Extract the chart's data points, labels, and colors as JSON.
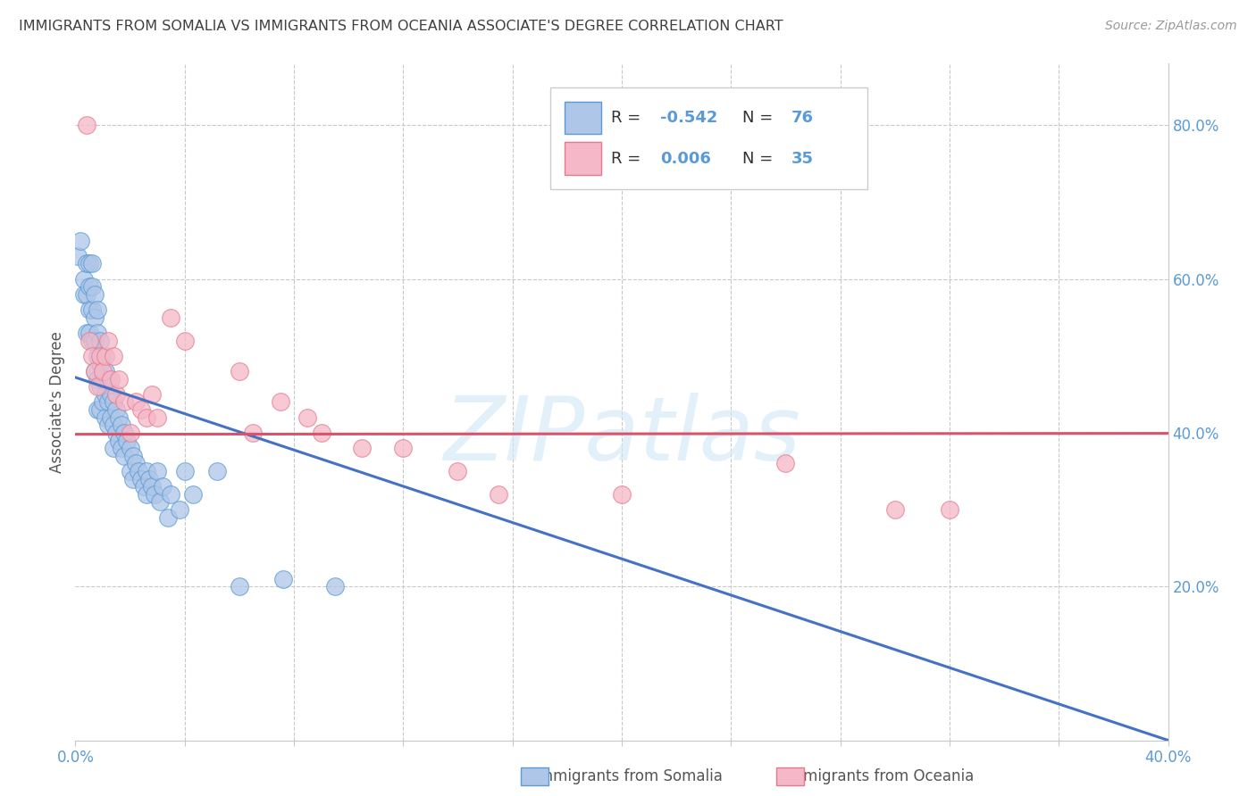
{
  "title": "IMMIGRANTS FROM SOMALIA VS IMMIGRANTS FROM OCEANIA ASSOCIATE'S DEGREE CORRELATION CHART",
  "source": "Source: ZipAtlas.com",
  "xlabel_somalia": "Immigrants from Somalia",
  "xlabel_oceania": "Immigrants from Oceania",
  "ylabel": "Associate's Degree",
  "watermark": "ZIPatlas",
  "xlim": [
    0.0,
    0.4
  ],
  "ylim": [
    0.0,
    0.88
  ],
  "xtick_positions": [
    0.0,
    0.04,
    0.08,
    0.12,
    0.16,
    0.2,
    0.24,
    0.28,
    0.32,
    0.36,
    0.4
  ],
  "xtick_labels_show": {
    "0.0": "0.0%",
    "0.40": "40.0%"
  },
  "yticks_right": [
    0.2,
    0.4,
    0.6,
    0.8
  ],
  "somalia_R": -0.542,
  "somalia_N": 76,
  "oceania_R": 0.006,
  "oceania_N": 35,
  "somalia_color": "#aec6e8",
  "oceania_color": "#f4b8c8",
  "somalia_edge_color": "#5b9bd5",
  "oceania_edge_color": "#e8788a",
  "somalia_line_color": "#4472c4",
  "oceania_line_color": "#d9536a",
  "title_color": "#404040",
  "axis_label_color": "#555555",
  "right_tick_color": "#5b9bd5",
  "legend_R_color": "#5b9bd5",
  "legend_N_color": "#5b9bd5",
  "background_color": "#ffffff",
  "grid_color": "#c8c8c8",
  "somalia_trend_intercept": 0.472,
  "somalia_trend_slope": -1.18,
  "oceania_trend_intercept": 0.398,
  "oceania_trend_slope": 0.003,
  "somalia_x": [
    0.001,
    0.002,
    0.003,
    0.003,
    0.004,
    0.004,
    0.004,
    0.005,
    0.005,
    0.005,
    0.005,
    0.006,
    0.006,
    0.006,
    0.006,
    0.007,
    0.007,
    0.007,
    0.007,
    0.008,
    0.008,
    0.008,
    0.008,
    0.008,
    0.009,
    0.009,
    0.009,
    0.009,
    0.01,
    0.01,
    0.01,
    0.011,
    0.011,
    0.011,
    0.012,
    0.012,
    0.012,
    0.013,
    0.013,
    0.014,
    0.014,
    0.014,
    0.015,
    0.015,
    0.016,
    0.016,
    0.017,
    0.017,
    0.018,
    0.018,
    0.019,
    0.02,
    0.02,
    0.021,
    0.021,
    0.022,
    0.023,
    0.024,
    0.025,
    0.026,
    0.026,
    0.027,
    0.028,
    0.029,
    0.03,
    0.031,
    0.032,
    0.034,
    0.035,
    0.038,
    0.04,
    0.043,
    0.052,
    0.06,
    0.076,
    0.095
  ],
  "somalia_y": [
    0.63,
    0.65,
    0.6,
    0.58,
    0.62,
    0.58,
    0.53,
    0.62,
    0.59,
    0.56,
    0.53,
    0.62,
    0.59,
    0.56,
    0.52,
    0.58,
    0.55,
    0.52,
    0.48,
    0.56,
    0.53,
    0.5,
    0.47,
    0.43,
    0.52,
    0.49,
    0.46,
    0.43,
    0.5,
    0.47,
    0.44,
    0.48,
    0.45,
    0.42,
    0.47,
    0.44,
    0.41,
    0.45,
    0.42,
    0.44,
    0.41,
    0.38,
    0.43,
    0.4,
    0.42,
    0.39,
    0.41,
    0.38,
    0.4,
    0.37,
    0.39,
    0.38,
    0.35,
    0.37,
    0.34,
    0.36,
    0.35,
    0.34,
    0.33,
    0.32,
    0.35,
    0.34,
    0.33,
    0.32,
    0.35,
    0.31,
    0.33,
    0.29,
    0.32,
    0.3,
    0.35,
    0.32,
    0.35,
    0.2,
    0.21,
    0.2
  ],
  "oceania_x": [
    0.004,
    0.005,
    0.006,
    0.007,
    0.008,
    0.009,
    0.01,
    0.011,
    0.012,
    0.013,
    0.014,
    0.015,
    0.016,
    0.018,
    0.02,
    0.022,
    0.024,
    0.026,
    0.028,
    0.03,
    0.035,
    0.04,
    0.06,
    0.065,
    0.075,
    0.085,
    0.09,
    0.105,
    0.12,
    0.14,
    0.155,
    0.2,
    0.26,
    0.3,
    0.32
  ],
  "oceania_y": [
    0.8,
    0.52,
    0.5,
    0.48,
    0.46,
    0.5,
    0.48,
    0.5,
    0.52,
    0.47,
    0.5,
    0.45,
    0.47,
    0.44,
    0.4,
    0.44,
    0.43,
    0.42,
    0.45,
    0.42,
    0.55,
    0.52,
    0.48,
    0.4,
    0.44,
    0.42,
    0.4,
    0.38,
    0.38,
    0.35,
    0.32,
    0.32,
    0.36,
    0.3,
    0.3
  ]
}
